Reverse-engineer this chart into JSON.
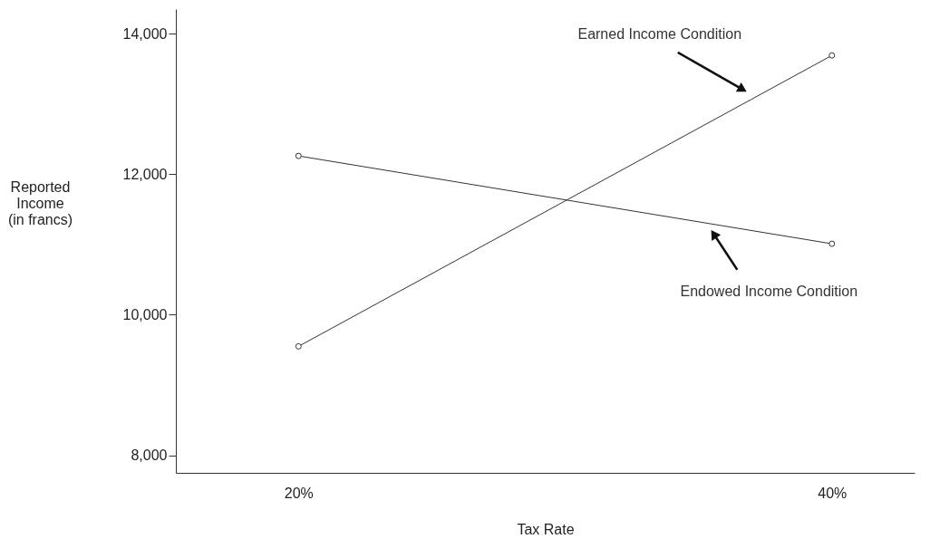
{
  "chart_data": {
    "type": "line",
    "xlabel": "Tax Rate",
    "ylabel": "Reported\nIncome\n(in francs)",
    "x": [
      20,
      40
    ],
    "xlim": [
      15.4,
      43.1
    ],
    "xticks": [
      {
        "value": 20,
        "label": "20%"
      },
      {
        "value": 40,
        "label": "40%"
      }
    ],
    "ylim": [
      7750,
      14350
    ],
    "yticks": [
      {
        "value": 8000,
        "label": "8,000"
      },
      {
        "value": 10000,
        "label": "10,000"
      },
      {
        "value": 12000,
        "label": "12,000"
      },
      {
        "value": 14000,
        "label": "14,000"
      }
    ],
    "series": [
      {
        "name": "Earned Income Condition",
        "color": "#333333",
        "values": [
          9550,
          13690
        ]
      },
      {
        "name": "Endowed Income Condition",
        "color": "#333333",
        "values": [
          12260,
          11010
        ]
      }
    ],
    "marker": "circle",
    "line_style": "solid",
    "grid": false,
    "legend": false
  }
}
